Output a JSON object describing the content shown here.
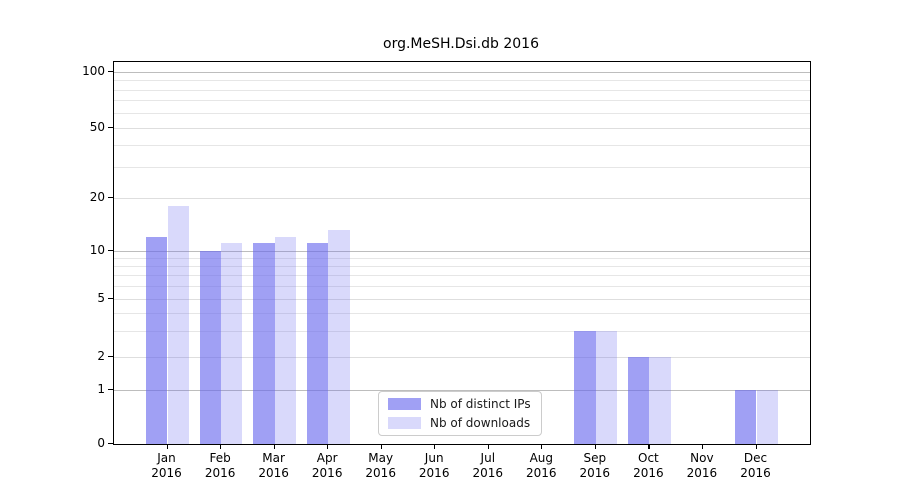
{
  "chart_data": {
    "type": "bar",
    "title": "org.MeSH.Dsi.db 2016",
    "year_label": "2016",
    "categories": [
      "Jan",
      "Feb",
      "Mar",
      "Apr",
      "May",
      "Jun",
      "Jul",
      "Aug",
      "Sep",
      "Oct",
      "Nov",
      "Dec"
    ],
    "series": [
      {
        "name": "Nb of distinct IPs",
        "key": "distinct-ips",
        "color": "rgba(102,102,238,0.62)",
        "values": [
          12,
          10,
          11,
          11,
          0,
          0,
          0,
          0,
          3,
          2,
          0,
          1
        ]
      },
      {
        "name": "Nb of downloads",
        "key": "downloads",
        "color": "rgba(102,102,238,0.25)",
        "values": [
          18,
          11,
          12,
          13,
          0,
          0,
          0,
          0,
          3,
          2,
          0,
          1
        ]
      }
    ],
    "y_ticks": [
      0,
      1,
      2,
      5,
      10,
      20,
      50,
      100
    ],
    "ylim": [
      0,
      100
    ],
    "scale": "log-like",
    "grid": true,
    "legend_position": "bottom-center",
    "colors": {
      "bar_base": "#6666ee",
      "distinct_ips_rendered": "#a4a4f3",
      "downloads_rendered": "#d9d9fa",
      "grid_major": "#bdbdbd",
      "grid_minor": "#e6e6e6",
      "axis": "#000000"
    }
  }
}
